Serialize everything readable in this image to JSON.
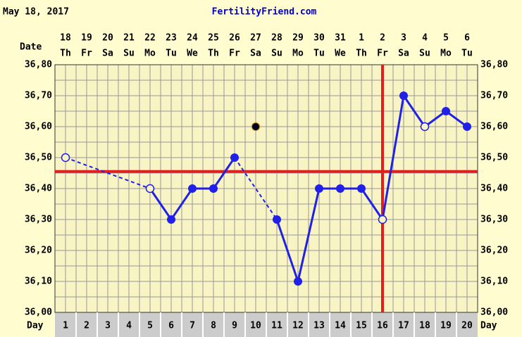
{
  "chart_data": {
    "type": "line",
    "header_date": "May 18, 2017",
    "site": "FertilityFriend.com",
    "date_label": "Date",
    "day_label": "Day",
    "x": [
      1,
      2,
      3,
      4,
      5,
      6,
      7,
      8,
      9,
      10,
      11,
      12,
      13,
      14,
      15,
      16,
      17,
      18,
      19,
      20
    ],
    "dates": [
      "18",
      "19",
      "20",
      "21",
      "22",
      "23",
      "24",
      "25",
      "26",
      "27",
      "28",
      "29",
      "30",
      "31",
      "1",
      "2",
      "3",
      "4",
      "5",
      "6"
    ],
    "weekdays": [
      "Th",
      "Fr",
      "Sa",
      "Su",
      "Mo",
      "Tu",
      "We",
      "Th",
      "Fr",
      "Sa",
      "Su",
      "Mo",
      "Tu",
      "We",
      "Th",
      "Fr",
      "Sa",
      "Su",
      "Mo",
      "Tu"
    ],
    "series": [
      {
        "color": "#2020e8",
        "values": [
          36.5,
          null,
          null,
          null,
          36.4,
          36.3,
          36.4,
          36.4,
          36.5,
          36.6,
          36.3,
          36.1,
          36.4,
          36.4,
          36.4,
          36.3,
          36.7,
          36.6,
          36.65,
          36.6
        ],
        "markers": [
          "open",
          null,
          null,
          null,
          "open",
          "filled",
          "filled",
          "filled",
          "filled",
          "discarded",
          "filled",
          "filled",
          "filled",
          "filled",
          "filled",
          "open",
          "filled",
          "open",
          "filled",
          "filled"
        ]
      }
    ],
    "coverline": 36.455,
    "ovulation_day": 16,
    "marker_color": "#e02020",
    "xlim": [
      0.5,
      20.5
    ],
    "ylim": [
      36.0,
      36.8
    ],
    "yticks": [
      {
        "value": 36.0,
        "label": "36,00"
      },
      {
        "value": 36.1,
        "label": "36,10"
      },
      {
        "value": 36.2,
        "label": "36,20"
      },
      {
        "value": 36.3,
        "label": "36,30"
      },
      {
        "value": 36.4,
        "label": "36,40"
      },
      {
        "value": 36.5,
        "label": "36,50"
      },
      {
        "value": 36.6,
        "label": "36,60"
      },
      {
        "value": 36.7,
        "label": "36,70"
      },
      {
        "value": 36.8,
        "label": "36,80"
      }
    ],
    "grid": true
  }
}
